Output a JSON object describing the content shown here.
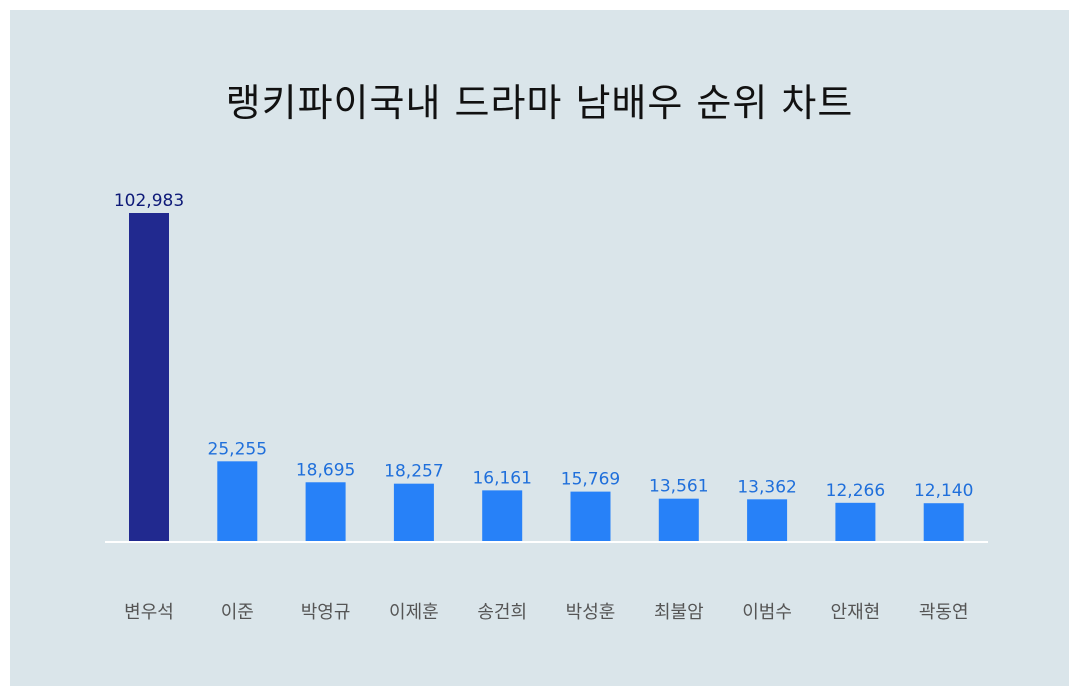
{
  "chart_data": {
    "type": "bar",
    "title": "랭키파이국내 드라마 남배우 순위 차트",
    "categories": [
      "변우석",
      "이준",
      "박영규",
      "이제훈",
      "송건희",
      "박성훈",
      "최불암",
      "이범수",
      "안재현",
      "곽동연"
    ],
    "values": [
      102983,
      25255,
      18695,
      18257,
      16161,
      15769,
      13561,
      13362,
      12266,
      12140
    ],
    "value_labels": [
      "102,983",
      "25,255",
      "18,695",
      "18,257",
      "16,161",
      "15,769",
      "13,561",
      "13,362",
      "12,266",
      "12,140"
    ],
    "xlabel": "",
    "ylabel": "",
    "grid": false,
    "legend": "none",
    "colors": {
      "highlight_bar": "#21298f",
      "bar": "#2781f8",
      "highlight_label": "#0e1a78",
      "label": "#1f6fdb",
      "category": "#555555",
      "baseline": "#ffffff",
      "background": "#dae5ea"
    }
  }
}
